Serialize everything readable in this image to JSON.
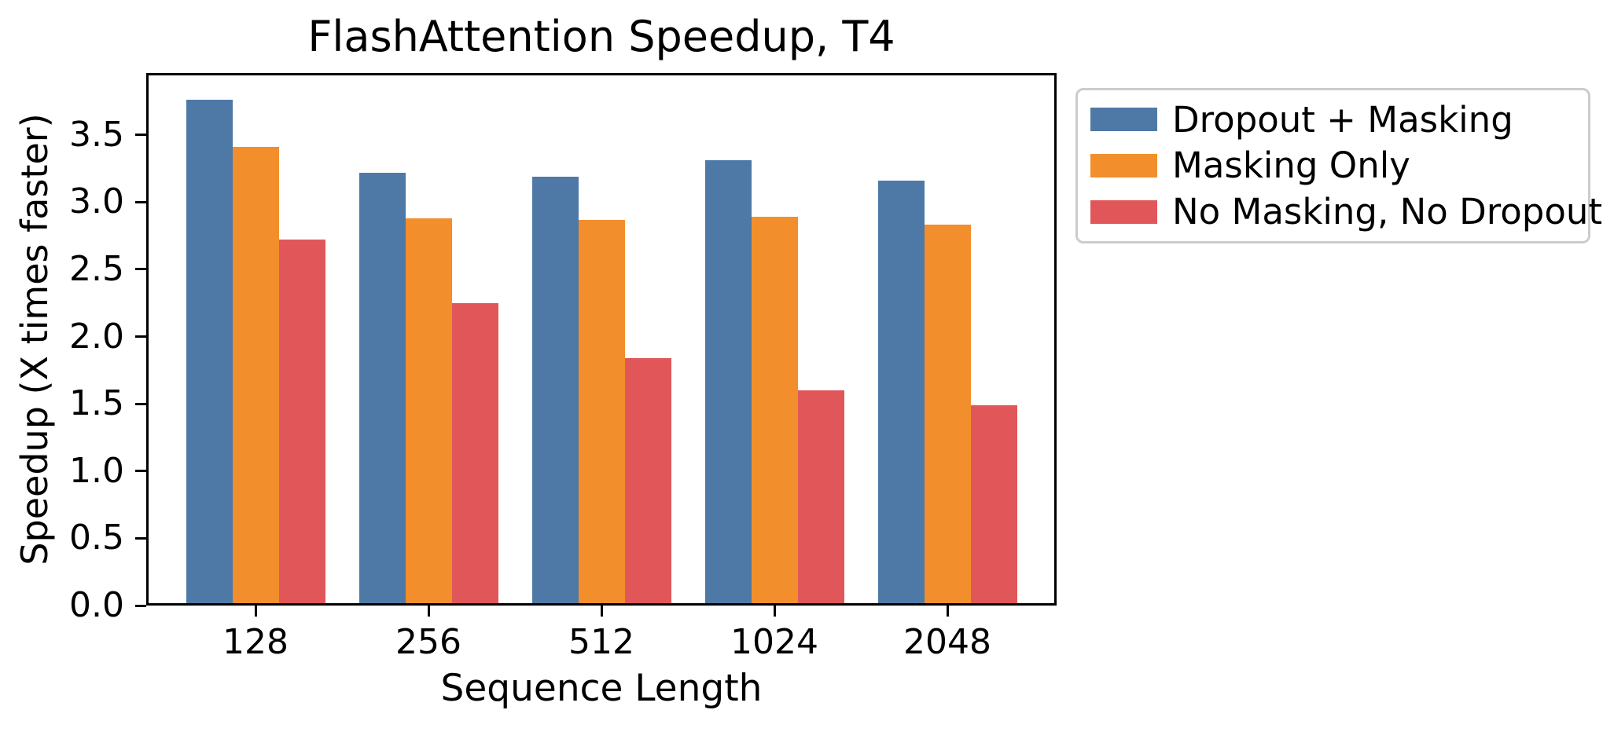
{
  "title": "FlashAttention Speedup, T4",
  "chart_data": {
    "type": "bar",
    "title": "FlashAttention Speedup, T4",
    "xlabel": "Sequence Length",
    "ylabel": "Speedup (X times faster)",
    "categories": [
      "128",
      "256",
      "512",
      "1024",
      "2048"
    ],
    "series": [
      {
        "name": "Dropout + Masking",
        "color": "#4e79a7",
        "values": [
          3.76,
          3.22,
          3.19,
          3.31,
          3.16
        ]
      },
      {
        "name": "Masking Only",
        "color": "#f28e2b",
        "values": [
          3.41,
          2.88,
          2.87,
          2.89,
          2.83
        ]
      },
      {
        "name": "No Masking, No Dropout",
        "color": "#e15759",
        "values": [
          2.72,
          2.25,
          1.84,
          1.6,
          1.49
        ]
      }
    ],
    "ylim": [
      0,
      3.96
    ],
    "yticks": [
      0.0,
      0.5,
      1.0,
      1.5,
      2.0,
      2.5,
      3.0,
      3.5
    ],
    "ytick_labels": [
      "0.0",
      "0.5",
      "1.0",
      "1.5",
      "2.0",
      "2.5",
      "3.0",
      "3.5"
    ],
    "grid": false,
    "legend_position": "outside-right",
    "axis_color": "#000000"
  }
}
